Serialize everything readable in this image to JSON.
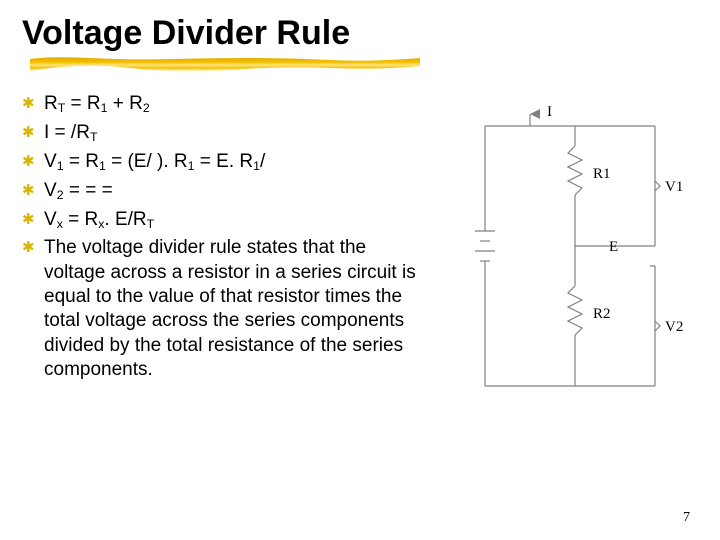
{
  "title": "Voltage Divider Rule",
  "page_number": "7",
  "bullets": {
    "b0": "R<sub>T</sub> = R<sub>1</sub> + R<sub>2</sub>",
    "b1": "I =   /R<sub>T</sub>",
    "b2": "V<sub>1</sub> =   R<sub>1</sub> = (E/     ). R<sub>1</sub> = E. R<sub>1</sub>/",
    "b3": "V<sub>2</sub> =       =              =",
    "b4": "V<sub>x</sub> = R<sub>x</sub>. E/R<sub>T</sub>",
    "b5": "The voltage divider rule states that the voltage across a resistor in a series circuit is equal to the value of that resistor times the total voltage across the series components divided by the total resistance of the series components."
  },
  "diagram": {
    "labels": {
      "I": "I",
      "R1": "R1",
      "V1": "V1",
      "E": "E",
      "R2": "R2",
      "V2": "V2"
    },
    "stroke": "#808080",
    "text_color": "#000000",
    "font_family": "Times New Roman, serif",
    "font_size": 15
  },
  "colors": {
    "bullet": "#d9b400",
    "stripe_fill": "#f2c200",
    "stripe_top": "#e3a800",
    "stripe_gloss": "#ffe380"
  }
}
